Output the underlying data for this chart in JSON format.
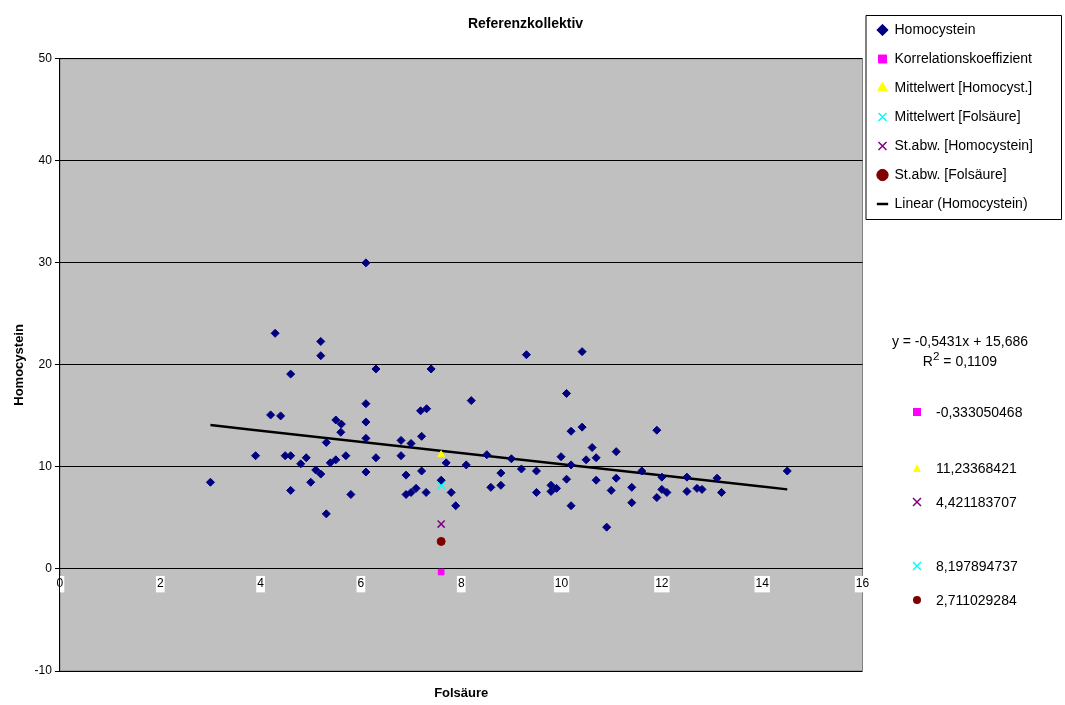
{
  "chart_data": {
    "type": "scatter",
    "title": "Referenzkollektiv",
    "xlabel": "Folsäure",
    "ylabel": "Homocystein",
    "xlim": [
      0,
      16
    ],
    "xticks": [
      0,
      2,
      4,
      6,
      8,
      10,
      12,
      14,
      16
    ],
    "ylim": [
      -10,
      50
    ],
    "yticks": [
      -10,
      0,
      10,
      20,
      30,
      40,
      50
    ],
    "grid": "y",
    "legend": "right",
    "annotations": [
      "y = -0,5431x + 15,686",
      "R$^{2}$ = 0,1109",
      "-0,333050468",
      "11,23368421",
      "4,421183707",
      "8,197894737",
      "2,711029284"
    ],
    "series": [
      {
        "name": "Homocystein",
        "color": "#000080",
        "marker": "diamond",
        "x": [
          6.1,
          4.29,
          5.2,
          5.2,
          4.6,
          6.3,
          7.4,
          8.2,
          6.1,
          4.2,
          4.4,
          7.19,
          7.31,
          5.5,
          5.61,
          6.1,
          5.6,
          5.31,
          6.1,
          6.8,
          7.0,
          7.21,
          3.9,
          4.49,
          4.6,
          4.91,
          4.8,
          5.7,
          6.3,
          6.8,
          5.5,
          5.39,
          7.7,
          8.1,
          5.1,
          5.2,
          6.1,
          7.21,
          6.9,
          3.0,
          5.0,
          7.6,
          4.6,
          5.8,
          6.9,
          7.0,
          7.1,
          7.3,
          7.8,
          7.89,
          5.31,
          9.3,
          10.41,
          10.1,
          10.19,
          10.41,
          11.9,
          10.61,
          11.09,
          8.51,
          10.69,
          9.99,
          10.49,
          9.0,
          10.19,
          9.2,
          9.5,
          11.6,
          8.79,
          12.0,
          12.5,
          13.1,
          14.5,
          10.1,
          10.69,
          11.09,
          8.59,
          8.79,
          9.5,
          9.79,
          9.79,
          9.9,
          10.99,
          11.4,
          12.0,
          12.1,
          12.5,
          12.7,
          12.8,
          13.19,
          11.4,
          11.9,
          10.19,
          10.9
        ],
        "values": [
          30.0,
          23.1,
          22.3,
          20.9,
          19.1,
          19.6,
          19.6,
          16.5,
          16.2,
          15.1,
          15.0,
          15.5,
          15.7,
          14.6,
          14.2,
          14.4,
          13.4,
          12.4,
          12.8,
          12.6,
          12.3,
          13.0,
          11.1,
          11.1,
          11.1,
          10.9,
          10.3,
          11.1,
          10.9,
          11.1,
          10.7,
          10.4,
          10.4,
          10.2,
          9.7,
          9.3,
          9.5,
          9.6,
          9.2,
          8.5,
          8.5,
          8.7,
          7.7,
          7.3,
          7.3,
          7.5,
          7.9,
          7.5,
          7.5,
          6.2,
          5.4,
          21.0,
          21.3,
          17.2,
          13.5,
          13.9,
          13.6,
          11.9,
          11.5,
          11.2,
          10.9,
          11.0,
          10.7,
          10.8,
          10.2,
          9.8,
          9.6,
          9.6,
          9.4,
          9.0,
          9.0,
          8.9,
          9.6,
          8.8,
          8.7,
          8.9,
          8.0,
          8.2,
          7.5,
          8.2,
          7.6,
          7.9,
          7.7,
          8.0,
          7.8,
          7.5,
          7.6,
          7.9,
          7.8,
          7.5,
          6.5,
          7.0,
          6.2,
          4.1
        ]
      },
      {
        "name": "Korrelationskoeffizient",
        "color": "#ff00ff",
        "marker": "square",
        "x": [
          7.6
        ],
        "values": [
          -0.3
        ]
      },
      {
        "name": "Mittelwert [Homocyst.]",
        "color": "#ffff00",
        "marker": "triangle",
        "x": [
          7.6
        ],
        "values": [
          11.2
        ]
      },
      {
        "name": "Mittelwert [Folsäure]",
        "color": "#00ffff",
        "marker": "cross",
        "x": [
          7.6
        ],
        "values": [
          8.2
        ]
      },
      {
        "name": "St.abw. [Homocystein]",
        "color": "#800080",
        "marker": "cross",
        "x": [
          7.6
        ],
        "values": [
          4.4
        ]
      },
      {
        "name": "St.abw. [Folsäure]",
        "color": "#800000",
        "marker": "circle",
        "x": [
          7.6
        ],
        "values": [
          2.7
        ]
      },
      {
        "name": "Linear (Homocystein)",
        "type": "line",
        "color": "#000000",
        "marker": "none",
        "line_style": "solid",
        "x": [
          3,
          14.5
        ],
        "values": [
          14.1,
          7.8
        ]
      }
    ]
  }
}
